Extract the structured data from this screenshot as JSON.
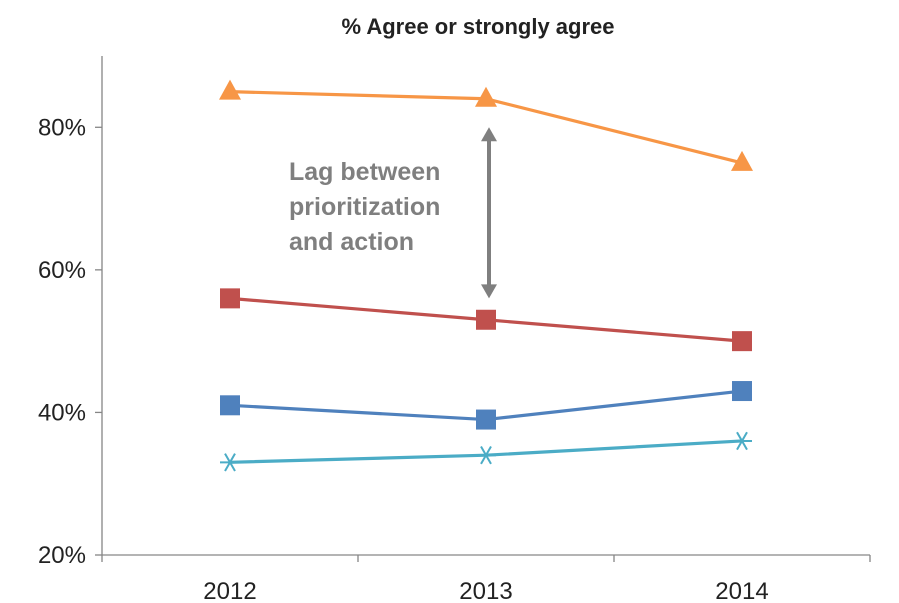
{
  "chart_data": {
    "type": "line",
    "title": "% Agree or strongly agree",
    "categories": [
      "2012",
      "2013",
      "2014"
    ],
    "ylim": [
      20,
      90
    ],
    "y_ticks": [
      20,
      40,
      60,
      80
    ],
    "y_tick_labels": [
      "20%",
      "40%",
      "60%",
      "80%"
    ],
    "grid": false,
    "series": [
      {
        "values": [
          85,
          84,
          75
        ],
        "color": "#f79646",
        "marker": "triangle"
      },
      {
        "values": [
          56,
          53,
          50
        ],
        "color": "#c0504d",
        "marker": "square"
      },
      {
        "values": [
          41,
          39,
          43
        ],
        "color": "#4f81bd",
        "marker": "square"
      },
      {
        "values": [
          33,
          34,
          36
        ],
        "color": "#4bacc6",
        "marker": "asterisk"
      }
    ],
    "annotation": {
      "lines": [
        "Lag between",
        "prioritization",
        "and action"
      ],
      "arrow_from": 80,
      "arrow_to": 56,
      "category": "2013",
      "color": "#7f7f7f"
    }
  }
}
